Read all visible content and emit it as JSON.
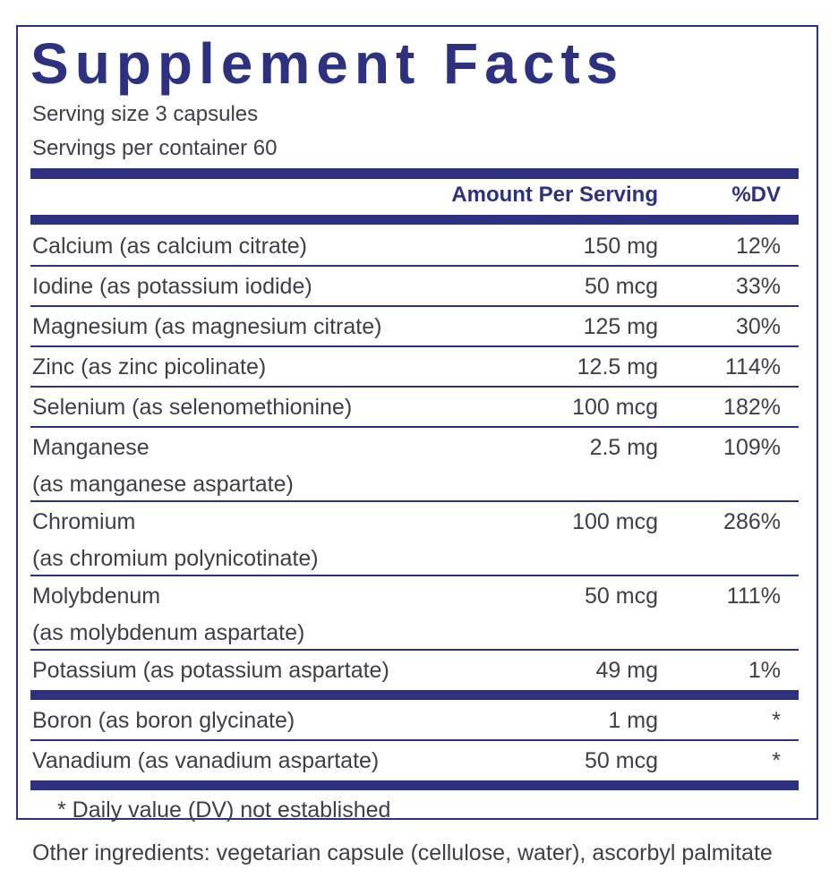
{
  "header": {
    "title": "Supplement Facts",
    "serving_size": "Serving size  3 capsules",
    "servings_per_container": "Servings per container  60"
  },
  "table": {
    "columns": [
      "Amount Per Serving",
      "%DV"
    ],
    "groups": [
      [
        {
          "name": [
            "Calcium (as calcium citrate)"
          ],
          "amount": "150 mg",
          "dv": "12%"
        },
        {
          "name": [
            "Iodine (as potassium iodide)"
          ],
          "amount": "50 mcg",
          "dv": "33%"
        },
        {
          "name": [
            "Magnesium (as magnesium citrate)"
          ],
          "amount": "125 mg",
          "dv": "30%"
        },
        {
          "name": [
            "Zinc (as zinc picolinate)"
          ],
          "amount": "12.5 mg",
          "dv": "114%"
        },
        {
          "name": [
            "Selenium (as selenomethionine)"
          ],
          "amount": "100 mcg",
          "dv": "182%"
        },
        {
          "name": [
            "Manganese",
            "(as manganese aspartate)"
          ],
          "amount": "2.5 mg",
          "dv": "109%"
        },
        {
          "name": [
            "Chromium",
            "(as chromium polynicotinate)"
          ],
          "amount": "100 mcg",
          "dv": "286%"
        },
        {
          "name": [
            "Molybdenum",
            "(as molybdenum aspartate)"
          ],
          "amount": "50 mcg",
          "dv": "111%"
        },
        {
          "name": [
            "Potassium (as potassium aspartate)"
          ],
          "amount": "49 mg",
          "dv": "1%"
        }
      ],
      [
        {
          "name": [
            "Boron (as boron glycinate)"
          ],
          "amount": "1 mg",
          "dv": "*"
        },
        {
          "name": [
            "Vanadium (as vanadium aspartate)"
          ],
          "amount": "50 mcg",
          "dv": "*"
        }
      ]
    ],
    "footnote": "* Daily value (DV) not established"
  },
  "other_ingredients": "Other ingredients: vegetarian capsule (cellulose, water), ascorbyl palmitate"
}
